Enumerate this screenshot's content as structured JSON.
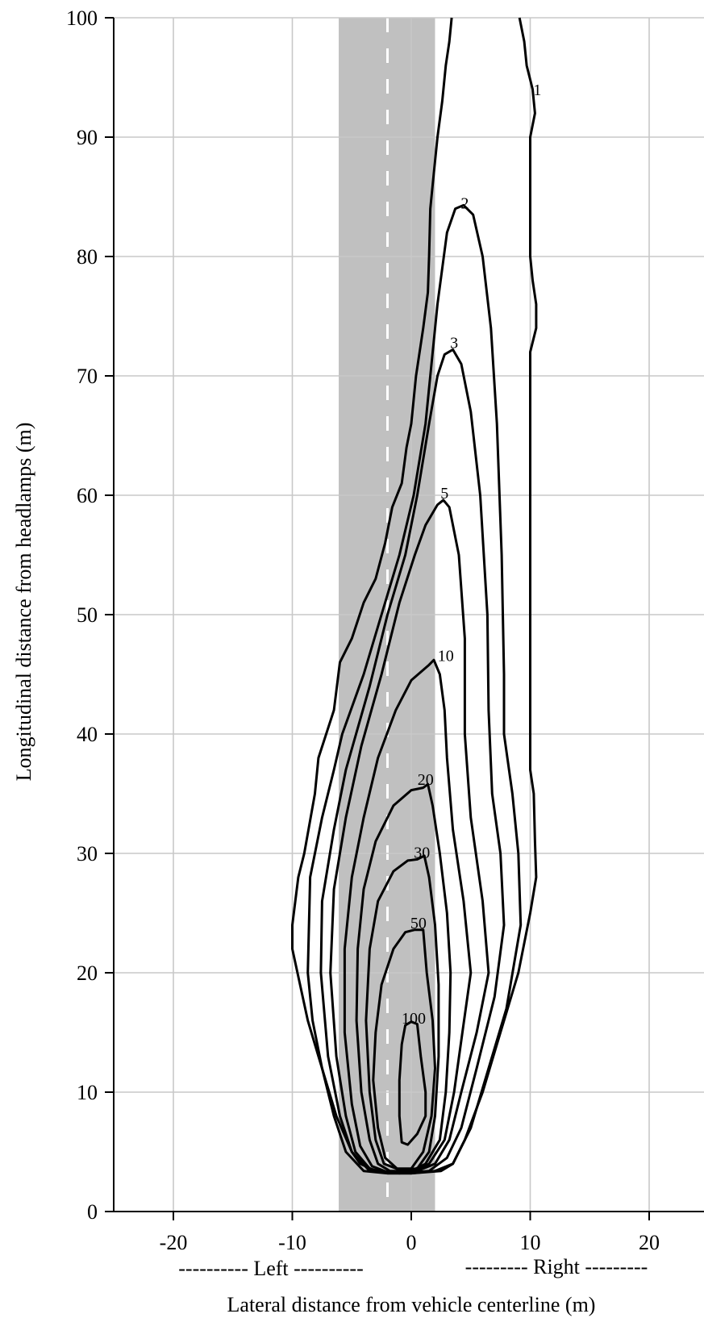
{
  "chart_data": {
    "type": "contour",
    "title": "",
    "xlabel": "Lateral distance from vehicle centerline (m)",
    "ylabel": "Longitudinal distance from headlamps (m)",
    "xlim": [
      -25,
      24
    ],
    "ylim": [
      0,
      100
    ],
    "x_ticks": [
      -20,
      -10,
      0,
      10,
      20
    ],
    "y_ticks": [
      0,
      10,
      20,
      30,
      40,
      50,
      60,
      70,
      80,
      90,
      100
    ],
    "x_tick_labels": [
      "-20",
      "-10",
      "0",
      "10",
      "20"
    ],
    "y_tick_labels": [
      "0",
      "10",
      "20",
      "30",
      "40",
      "50",
      "60",
      "70",
      "80",
      "90",
      "100"
    ],
    "grid": true,
    "side_labels": {
      "left": "---------- Left ----------",
      "right": "--------- Right ---------"
    },
    "lane": {
      "shaded_x_range": [
        -6.1,
        2.0
      ],
      "shade_color": "#c0c0c0",
      "centerline_x": -2.0,
      "centerline_color": "#ffffff",
      "centerline_style": "dashed"
    },
    "contours": [
      {
        "level": "1",
        "label_at": [
          10.6,
          94
        ],
        "points": [
          [
            3.4,
            100
          ],
          [
            3.2,
            98
          ],
          [
            2.9,
            96
          ],
          [
            2.6,
            93
          ],
          [
            2.2,
            90
          ],
          [
            1.9,
            87
          ],
          [
            1.6,
            84
          ],
          [
            1.5,
            80
          ],
          [
            1.4,
            77
          ],
          [
            1.0,
            74
          ],
          [
            0.4,
            70
          ],
          [
            0.0,
            66
          ],
          [
            -0.4,
            64
          ],
          [
            -0.8,
            61
          ],
          [
            -1.6,
            59
          ],
          [
            -2.2,
            56
          ],
          [
            -3.0,
            53
          ],
          [
            -4.0,
            51
          ],
          [
            -5.0,
            48
          ],
          [
            -6.0,
            46
          ],
          [
            -6.5,
            42
          ],
          [
            -7.8,
            38
          ],
          [
            -8.1,
            35
          ],
          [
            -9.0,
            30
          ],
          [
            -9.5,
            28
          ],
          [
            -10.0,
            24
          ],
          [
            -10.0,
            22
          ],
          [
            -8.7,
            16
          ],
          [
            -7.8,
            13
          ],
          [
            -6.3,
            8
          ],
          [
            -5.0,
            5
          ],
          [
            -4.3,
            4
          ],
          [
            -3.0,
            3.4
          ],
          [
            0.0,
            3.2
          ],
          [
            2.5,
            3.4
          ],
          [
            3.5,
            4
          ],
          [
            4.5,
            6
          ],
          [
            6.0,
            10
          ],
          [
            7.5,
            15
          ],
          [
            9.0,
            20
          ],
          [
            10.0,
            25
          ],
          [
            10.5,
            28
          ],
          [
            10.4,
            31
          ],
          [
            10.3,
            35
          ],
          [
            10.0,
            37
          ],
          [
            10.0,
            40
          ],
          [
            10.0,
            50
          ],
          [
            10.0,
            60
          ],
          [
            10.0,
            72
          ],
          [
            10.5,
            74
          ],
          [
            10.5,
            76
          ],
          [
            10.2,
            78
          ],
          [
            10.0,
            80
          ],
          [
            10.0,
            85
          ],
          [
            10.0,
            90
          ],
          [
            10.4,
            92
          ],
          [
            10.2,
            94
          ],
          [
            9.7,
            96
          ],
          [
            9.5,
            98
          ],
          [
            9.1,
            100
          ]
        ]
      },
      {
        "level": "2",
        "label_at": [
          4.5,
          84.5
        ],
        "points": [
          [
            3.7,
            84
          ],
          [
            4.4,
            84.3
          ],
          [
            5.2,
            83.5
          ],
          [
            6.0,
            80
          ],
          [
            6.7,
            74
          ],
          [
            7.2,
            66
          ],
          [
            7.6,
            55
          ],
          [
            7.8,
            45
          ],
          [
            7.8,
            40
          ],
          [
            8.5,
            35
          ],
          [
            9.0,
            30
          ],
          [
            9.2,
            24
          ],
          [
            8.0,
            17
          ],
          [
            6.5,
            12
          ],
          [
            5.0,
            7
          ],
          [
            3.5,
            4
          ],
          [
            2.0,
            3.4
          ],
          [
            0.0,
            3.2
          ],
          [
            -2.0,
            3.2
          ],
          [
            -4.0,
            3.4
          ],
          [
            -5.5,
            5
          ],
          [
            -6.5,
            8
          ],
          [
            -7.5,
            12
          ],
          [
            -8.3,
            16
          ],
          [
            -8.7,
            20
          ],
          [
            -8.5,
            28
          ],
          [
            -7.5,
            33
          ],
          [
            -6.5,
            37
          ],
          [
            -5.8,
            40
          ],
          [
            -4.0,
            45
          ],
          [
            -2.5,
            50
          ],
          [
            -1.0,
            55
          ],
          [
            0.2,
            60
          ],
          [
            1.2,
            66
          ],
          [
            1.6,
            70
          ],
          [
            2.2,
            76
          ],
          [
            3.0,
            82
          ],
          [
            3.7,
            84
          ]
        ]
      },
      {
        "level": "3",
        "label_at": [
          3.6,
          72.8
        ],
        "points": [
          [
            2.8,
            71.8
          ],
          [
            3.5,
            72.2
          ],
          [
            4.2,
            71
          ],
          [
            5.0,
            67
          ],
          [
            5.8,
            60
          ],
          [
            6.4,
            50
          ],
          [
            6.5,
            42
          ],
          [
            6.8,
            35
          ],
          [
            7.5,
            30
          ],
          [
            7.8,
            24
          ],
          [
            7.0,
            18
          ],
          [
            5.5,
            12
          ],
          [
            4.2,
            7
          ],
          [
            3.0,
            4.5
          ],
          [
            1.5,
            3.4
          ],
          [
            -1.0,
            3.2
          ],
          [
            -3.5,
            3.4
          ],
          [
            -5.0,
            5
          ],
          [
            -6.0,
            8
          ],
          [
            -7.0,
            13
          ],
          [
            -7.6,
            20
          ],
          [
            -7.5,
            26
          ],
          [
            -6.5,
            32
          ],
          [
            -5.5,
            37
          ],
          [
            -3.5,
            44
          ],
          [
            -2.0,
            50
          ],
          [
            -0.5,
            55
          ],
          [
            0.5,
            60
          ],
          [
            1.5,
            66
          ],
          [
            2.2,
            70
          ],
          [
            2.8,
            71.8
          ]
        ]
      },
      {
        "level": "5",
        "label_at": [
          2.8,
          60.2
        ],
        "points": [
          [
            2.2,
            59.2
          ],
          [
            2.7,
            59.6
          ],
          [
            3.2,
            59
          ],
          [
            4.0,
            55
          ],
          [
            4.5,
            48
          ],
          [
            4.5,
            40
          ],
          [
            5.0,
            33
          ],
          [
            6.0,
            26
          ],
          [
            6.5,
            20
          ],
          [
            5.5,
            15
          ],
          [
            4.2,
            10
          ],
          [
            3.2,
            6
          ],
          [
            2.0,
            4
          ],
          [
            0.0,
            3.2
          ],
          [
            -2.0,
            3.2
          ],
          [
            -3.5,
            3.6
          ],
          [
            -4.7,
            5
          ],
          [
            -5.5,
            8
          ],
          [
            -6.3,
            13
          ],
          [
            -6.8,
            20
          ],
          [
            -6.5,
            27
          ],
          [
            -5.5,
            33
          ],
          [
            -4.2,
            39
          ],
          [
            -2.5,
            45
          ],
          [
            -1.0,
            51
          ],
          [
            0.3,
            55
          ],
          [
            1.2,
            57.5
          ],
          [
            2.2,
            59.2
          ]
        ]
      },
      {
        "level": "10",
        "label_at": [
          2.9,
          46.6
        ],
        "points": [
          [
            1.5,
            45.8
          ],
          [
            1.9,
            46.2
          ],
          [
            2.4,
            45
          ],
          [
            2.8,
            42
          ],
          [
            3.0,
            38
          ],
          [
            3.5,
            32
          ],
          [
            4.4,
            26
          ],
          [
            5.0,
            20
          ],
          [
            4.3,
            15
          ],
          [
            3.6,
            10
          ],
          [
            2.8,
            6
          ],
          [
            1.5,
            4
          ],
          [
            0.0,
            3.3
          ],
          [
            -2.0,
            3.3
          ],
          [
            -3.3,
            3.8
          ],
          [
            -4.3,
            5.5
          ],
          [
            -5.0,
            9
          ],
          [
            -5.6,
            15
          ],
          [
            -5.6,
            22
          ],
          [
            -5.0,
            28
          ],
          [
            -4.0,
            33
          ],
          [
            -2.8,
            38
          ],
          [
            -1.3,
            42
          ],
          [
            0.0,
            44.5
          ],
          [
            1.5,
            45.8
          ]
        ]
      },
      {
        "level": "20",
        "label_at": [
          1.2,
          36.2
        ],
        "points": [
          [
            1.0,
            35.5
          ],
          [
            1.4,
            35.8
          ],
          [
            1.8,
            34
          ],
          [
            2.4,
            30
          ],
          [
            3.0,
            25
          ],
          [
            3.3,
            20
          ],
          [
            3.2,
            15
          ],
          [
            2.9,
            10
          ],
          [
            2.4,
            6
          ],
          [
            1.2,
            4
          ],
          [
            0.0,
            3.4
          ],
          [
            -1.8,
            3.4
          ],
          [
            -2.8,
            4
          ],
          [
            -3.5,
            6
          ],
          [
            -4.2,
            10
          ],
          [
            -4.6,
            16
          ],
          [
            -4.5,
            22
          ],
          [
            -4.0,
            27
          ],
          [
            -3.0,
            31
          ],
          [
            -1.5,
            34
          ],
          [
            0.0,
            35.3
          ],
          [
            1.0,
            35.5
          ]
        ]
      },
      {
        "level": "30",
        "label_at": [
          0.9,
          30.1
        ],
        "points": [
          [
            0.5,
            29.5
          ],
          [
            1.1,
            29.8
          ],
          [
            1.5,
            28
          ],
          [
            2.0,
            24
          ],
          [
            2.3,
            19
          ],
          [
            2.3,
            13
          ],
          [
            2.0,
            8
          ],
          [
            1.5,
            5
          ],
          [
            0.5,
            3.6
          ],
          [
            -1.0,
            3.5
          ],
          [
            -2.3,
            4
          ],
          [
            -3.0,
            6
          ],
          [
            -3.5,
            10
          ],
          [
            -3.8,
            16
          ],
          [
            -3.5,
            22
          ],
          [
            -2.8,
            26
          ],
          [
            -1.5,
            28.5
          ],
          [
            -0.3,
            29.4
          ],
          [
            0.5,
            29.5
          ]
        ]
      },
      {
        "level": "50",
        "label_at": [
          0.6,
          24.2
        ],
        "points": [
          [
            0.3,
            23.6
          ],
          [
            1.0,
            23.6
          ],
          [
            1.3,
            20
          ],
          [
            1.8,
            16
          ],
          [
            2.0,
            12
          ],
          [
            1.7,
            8
          ],
          [
            1.0,
            5
          ],
          [
            0.0,
            3.6
          ],
          [
            -1.2,
            3.6
          ],
          [
            -2.2,
            4.5
          ],
          [
            -2.8,
            7
          ],
          [
            -3.2,
            11
          ],
          [
            -3.0,
            15
          ],
          [
            -2.5,
            19
          ],
          [
            -1.5,
            22
          ],
          [
            -0.5,
            23.4
          ],
          [
            0.3,
            23.6
          ]
        ]
      },
      {
        "level": "100",
        "label_at": [
          0.2,
          16.2
        ],
        "points": [
          [
            -0.5,
            15.6
          ],
          [
            0.0,
            15.9
          ],
          [
            0.5,
            15.7
          ],
          [
            0.8,
            13
          ],
          [
            1.2,
            10
          ],
          [
            1.2,
            8
          ],
          [
            0.5,
            6.5
          ],
          [
            -0.3,
            5.6
          ],
          [
            -0.8,
            5.8
          ],
          [
            -1.0,
            8
          ],
          [
            -1.0,
            11
          ],
          [
            -0.8,
            14
          ],
          [
            -0.5,
            15.6
          ]
        ]
      }
    ]
  }
}
